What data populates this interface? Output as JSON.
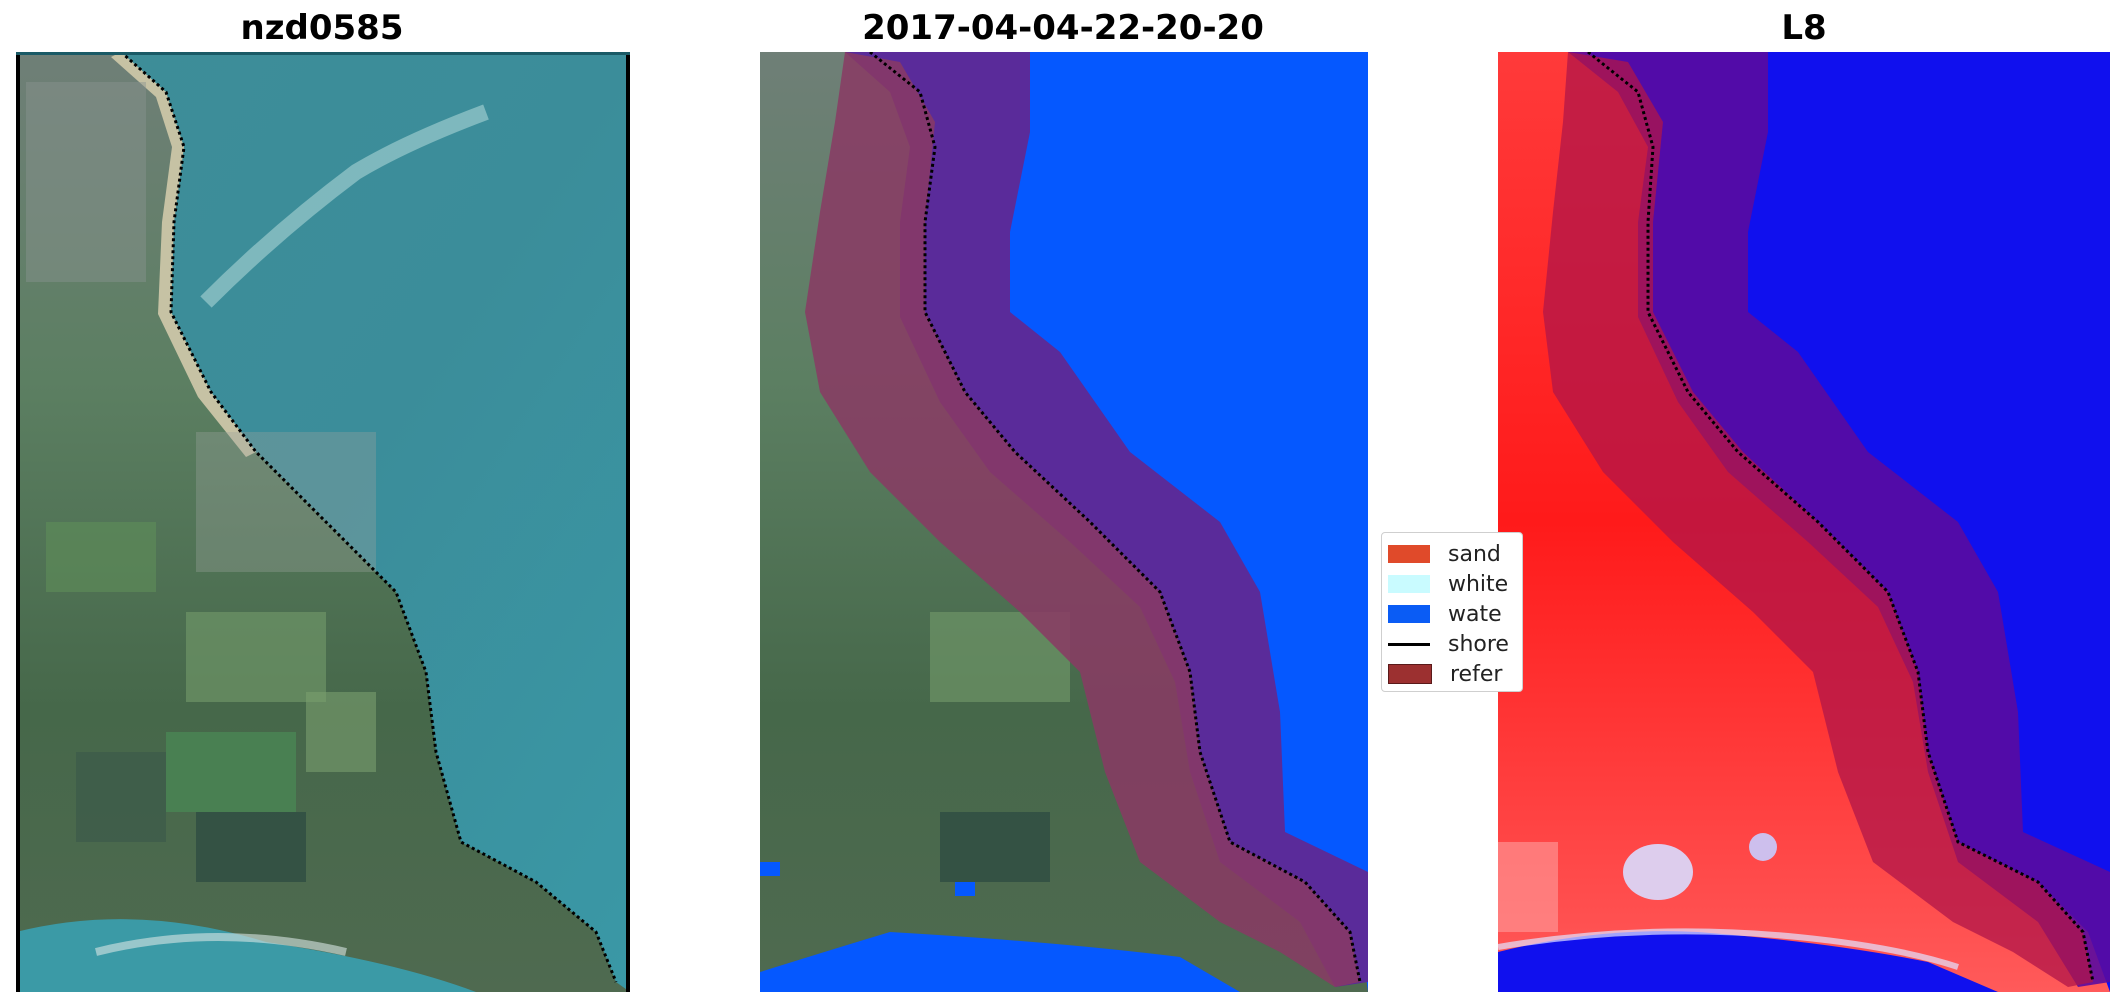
{
  "panels": [
    {
      "title": "nzd0585"
    },
    {
      "title": "2017-04-04-22-20-20"
    },
    {
      "title": "L8"
    }
  ],
  "legend": {
    "items": [
      {
        "label": "sand",
        "color": "#e04a2a",
        "kind": "patch"
      },
      {
        "label": "white",
        "color": "#c9fbff",
        "kind": "patch"
      },
      {
        "label": "wate",
        "color": "#0a5cf5",
        "kind": "patch"
      },
      {
        "label": "shore",
        "color": "#000000",
        "kind": "line"
      },
      {
        "label": "refer",
        "color": "#9c3030",
        "kind": "patch"
      }
    ]
  },
  "colors": {
    "ocean_rgb": "#3f8f9b",
    "land_rgb": "#557a55",
    "water_class": "#0558ff",
    "buffer_purple": "#5a2b9a",
    "reference_maroon": "#8a3a64",
    "index_red": "#ff2020",
    "index_blue": "#1010ee"
  }
}
